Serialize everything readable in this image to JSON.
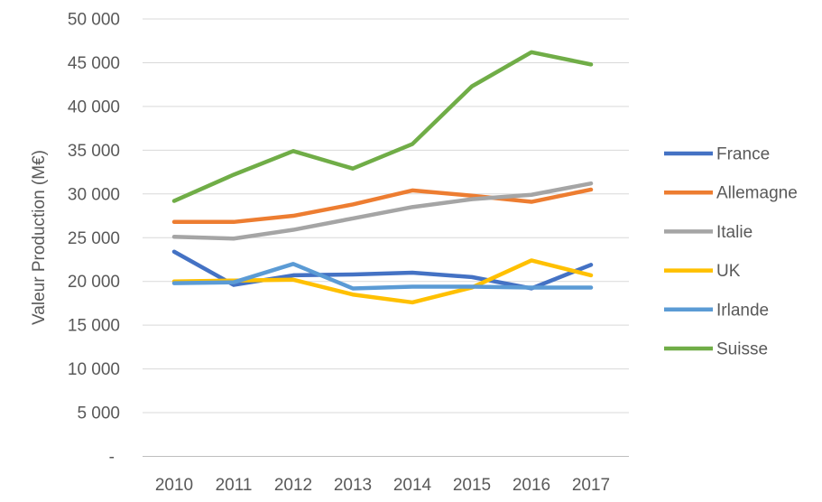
{
  "chart_data": {
    "type": "line",
    "title": "",
    "xlabel": "",
    "ylabel": "Valeur Production (M€)",
    "categories": [
      "2010",
      "2011",
      "2012",
      "2013",
      "2014",
      "2015",
      "2016",
      "2017"
    ],
    "y_axis": {
      "min": 0,
      "max": 50000,
      "step": 5000,
      "tick_labels": [
        "-",
        "5 000",
        "10 000",
        "15 000",
        "20 000",
        "25 000",
        "30 000",
        "35 000",
        "40 000",
        "45 000",
        "50 000"
      ]
    },
    "grid": true,
    "legend_position": "right",
    "series": [
      {
        "name": "France",
        "color": "#4472C4",
        "values": [
          23400,
          19600,
          20700,
          20800,
          21000,
          20500,
          19200,
          21900
        ]
      },
      {
        "name": "Allemagne",
        "color": "#ED7D31",
        "values": [
          26800,
          26800,
          27500,
          28800,
          30400,
          29800,
          29100,
          30500
        ]
      },
      {
        "name": "Italie",
        "color": "#A5A5A5",
        "values": [
          25100,
          24900,
          25900,
          27200,
          28500,
          29400,
          29900,
          31200
        ]
      },
      {
        "name": "UK",
        "color": "#FFC000",
        "values": [
          20000,
          20100,
          20200,
          18500,
          17600,
          19300,
          22400,
          20700
        ]
      },
      {
        "name": "Irlande",
        "color": "#5B9BD5",
        "values": [
          19800,
          19900,
          22000,
          19200,
          19400,
          19400,
          19300,
          19300
        ]
      },
      {
        "name": "Suisse",
        "color": "#70AD47",
        "values": [
          29200,
          32200,
          34900,
          32900,
          35700,
          42300,
          46200,
          44800
        ]
      }
    ]
  },
  "styles": {
    "text_color": "#595959",
    "gridline_color": "#D9D9D9",
    "axis_line_color": "#BFBFBF",
    "background": "#FFFFFF"
  }
}
